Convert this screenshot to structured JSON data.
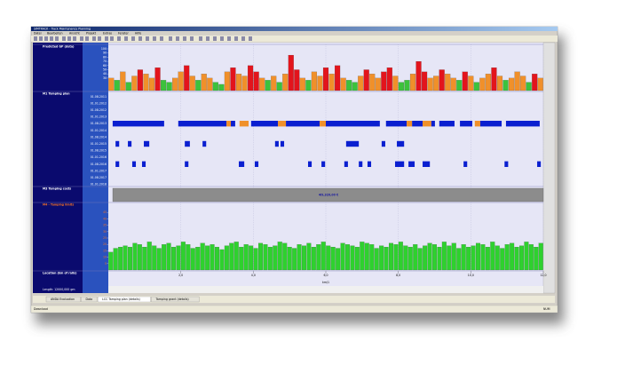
{
  "window": {
    "title": "SIMTRACK - Track Maintenance Planning",
    "menu": [
      "Datei",
      "Bearbeiten",
      "Ansicht",
      "Projekt",
      "Extras",
      "Fenster",
      "Hilfe"
    ]
  },
  "panels": {
    "gp": {
      "label": "Predicted GP (data)",
      "type": "bar",
      "ylim": [
        0,
        100
      ],
      "yticks": [
        30,
        40,
        50,
        60,
        70,
        80,
        90,
        100
      ],
      "colors": [
        "#e3141c",
        "#f0902a",
        "#3cc23c"
      ],
      "bars": [
        [
          30,
          1
        ],
        [
          25,
          2
        ],
        [
          45,
          1
        ],
        [
          20,
          2
        ],
        [
          35,
          1
        ],
        [
          50,
          0
        ],
        [
          40,
          1
        ],
        [
          30,
          1
        ],
        [
          55,
          0
        ],
        [
          25,
          2
        ],
        [
          20,
          2
        ],
        [
          30,
          1
        ],
        [
          45,
          1
        ],
        [
          60,
          0
        ],
        [
          35,
          1
        ],
        [
          25,
          2
        ],
        [
          40,
          1
        ],
        [
          30,
          1
        ],
        [
          20,
          2
        ],
        [
          15,
          2
        ],
        [
          45,
          1
        ],
        [
          55,
          0
        ],
        [
          40,
          1
        ],
        [
          35,
          1
        ],
        [
          60,
          0
        ],
        [
          45,
          0
        ],
        [
          30,
          1
        ],
        [
          25,
          2
        ],
        [
          35,
          1
        ],
        [
          20,
          2
        ],
        [
          40,
          1
        ],
        [
          85,
          0
        ],
        [
          50,
          0
        ],
        [
          30,
          1
        ],
        [
          25,
          2
        ],
        [
          45,
          1
        ],
        [
          35,
          1
        ],
        [
          55,
          0
        ],
        [
          40,
          1
        ],
        [
          60,
          0
        ],
        [
          30,
          1
        ],
        [
          25,
          2
        ],
        [
          20,
          2
        ],
        [
          35,
          1
        ],
        [
          50,
          0
        ],
        [
          40,
          1
        ],
        [
          30,
          1
        ],
        [
          45,
          0
        ],
        [
          55,
          0
        ],
        [
          35,
          1
        ],
        [
          20,
          2
        ],
        [
          25,
          2
        ],
        [
          40,
          1
        ],
        [
          70,
          0
        ],
        [
          45,
          0
        ],
        [
          30,
          1
        ],
        [
          35,
          1
        ],
        [
          50,
          0
        ],
        [
          40,
          1
        ],
        [
          30,
          1
        ],
        [
          25,
          2
        ],
        [
          45,
          0
        ],
        [
          35,
          1
        ],
        [
          20,
          2
        ],
        [
          30,
          1
        ],
        [
          40,
          1
        ],
        [
          55,
          0
        ],
        [
          35,
          1
        ],
        [
          25,
          2
        ],
        [
          30,
          1
        ],
        [
          45,
          1
        ],
        [
          35,
          1
        ],
        [
          20,
          2
        ],
        [
          40,
          0
        ],
        [
          30,
          1
        ]
      ]
    },
    "plan": {
      "label": "M1 Tamping plan",
      "type": "gantt",
      "colors": [
        "#0a1fd0",
        "#f0902a"
      ],
      "rows": [
        "01.08.2011",
        "01.01.2012",
        "01.08.2012",
        "01.01.2013",
        "01.08.2013",
        "01.01.2014",
        "01.08.2014",
        "01.01.2015",
        "01.08.2015",
        "01.01.2016",
        "01.08.2016",
        "01.01.2017",
        "01.08.2017",
        "01.01.2018"
      ],
      "segments": [
        [
          4,
          120,
          1540,
          0
        ],
        [
          4,
          1930,
          3260,
          0
        ],
        [
          4,
          3260,
          3380,
          1
        ],
        [
          4,
          3380,
          3500,
          0
        ],
        [
          4,
          3620,
          3870,
          1
        ],
        [
          4,
          3940,
          4680,
          0
        ],
        [
          4,
          4680,
          4900,
          1
        ],
        [
          4,
          4900,
          5830,
          0
        ],
        [
          4,
          5830,
          6000,
          1
        ],
        [
          4,
          6000,
          7490,
          0
        ],
        [
          4,
          7660,
          8230,
          0
        ],
        [
          4,
          8230,
          8380,
          1
        ],
        [
          4,
          8380,
          8670,
          0
        ],
        [
          4,
          8670,
          8910,
          1
        ],
        [
          4,
          8910,
          9010,
          0
        ],
        [
          4,
          9130,
          9550,
          0
        ],
        [
          4,
          9700,
          10040,
          0
        ],
        [
          4,
          10110,
          10260,
          1
        ],
        [
          4,
          10260,
          10850,
          0
        ],
        [
          4,
          10970,
          11900,
          0
        ],
        [
          7,
          200,
          300,
          0
        ],
        [
          7,
          540,
          640,
          0
        ],
        [
          7,
          980,
          1130,
          0
        ],
        [
          7,
          2110,
          2250,
          0
        ],
        [
          7,
          2600,
          2700,
          0
        ],
        [
          7,
          4600,
          4700,
          0
        ],
        [
          7,
          4750,
          4850,
          0
        ],
        [
          7,
          6560,
          6910,
          0
        ],
        [
          7,
          7540,
          7640,
          0
        ],
        [
          7,
          7960,
          8160,
          0
        ],
        [
          10,
          200,
          300,
          0
        ],
        [
          10,
          660,
          760,
          0
        ],
        [
          10,
          930,
          1030,
          0
        ],
        [
          10,
          2110,
          2210,
          0
        ],
        [
          10,
          3600,
          3750,
          0
        ],
        [
          10,
          4040,
          4140,
          0
        ],
        [
          10,
          5510,
          5610,
          0
        ],
        [
          10,
          5880,
          5980,
          0
        ],
        [
          10,
          6510,
          6610,
          0
        ],
        [
          10,
          6910,
          7010,
          0
        ],
        [
          10,
          7150,
          7250,
          0
        ],
        [
          10,
          7910,
          8160,
          0
        ],
        [
          10,
          8280,
          8450,
          0
        ],
        [
          10,
          8670,
          8870,
          0
        ],
        [
          10,
          9800,
          9900,
          0
        ],
        [
          10,
          10930,
          11030,
          0
        ],
        [
          10,
          11830,
          11930,
          0
        ]
      ]
    },
    "costs": {
      "label": "M3 Tamping costs",
      "total": "4l9,320,00 €"
    },
    "limits": {
      "label": "M4 - Tamping limits",
      "type": "bar",
      "color": "#2ed12e",
      "ylim": [
        0,
        50
      ],
      "yticks": [
        5,
        10,
        15,
        20,
        25,
        30,
        35,
        40,
        45
      ],
      "values": [
        14,
        17,
        18,
        19,
        18,
        21,
        20,
        18,
        22,
        19,
        17,
        20,
        21,
        18,
        19,
        22,
        20,
        17,
        18,
        21,
        19,
        20,
        18,
        16,
        19,
        21,
        22,
        18,
        20,
        19,
        17,
        21,
        20,
        18,
        19,
        22,
        21,
        18,
        17,
        20,
        19,
        21,
        18,
        20,
        22,
        19,
        18,
        17,
        21,
        20,
        19,
        18,
        22,
        21,
        20,
        17,
        19,
        18,
        21,
        20,
        22,
        19,
        18,
        20,
        17,
        19,
        21,
        20,
        18,
        22,
        19,
        21,
        17,
        20,
        18,
        19,
        21,
        20,
        18,
        22,
        19,
        17,
        20,
        21,
        18,
        19,
        22,
        20,
        18,
        21
      ]
    },
    "location": {
      "label": "Location (km of rails)",
      "unit": "km/1",
      "xlim": [
        0,
        12000
      ],
      "xticks": [
        {
          "value": 2000,
          "label": "2,0"
        },
        {
          "value": 4000,
          "label": "4,0"
        },
        {
          "value": 6000,
          "label": "6,0"
        },
        {
          "value": 8000,
          "label": "8,0"
        },
        {
          "value": 10000,
          "label": "10,0"
        },
        {
          "value": 12000,
          "label": "12,0"
        }
      ],
      "length": "Length: 12000,000 gm"
    }
  },
  "tabs": [
    "ANDA Evaluation",
    "Data",
    "LCC Tamping plan (details)",
    "Tamping grant (details)"
  ],
  "status": "Download",
  "status_right": "NUM"
}
